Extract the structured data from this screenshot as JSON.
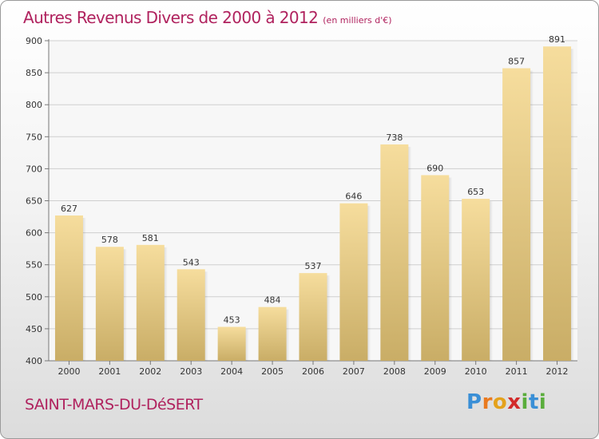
{
  "header": {
    "title": "Autres Revenus Divers de 2000 à 2012",
    "subtitle": "(en milliers d'€)"
  },
  "footer": {
    "commune": "SAINT-MARS-DU-DéSERT",
    "logo_letters": [
      {
        "char": "P",
        "color": "#3a8fd6"
      },
      {
        "char": "r",
        "color": "#e97a1f"
      },
      {
        "char": "o",
        "color": "#e4a21c"
      },
      {
        "char": "x",
        "color": "#d22b2b"
      },
      {
        "char": "i",
        "color": "#5aad3c"
      },
      {
        "char": "t",
        "color": "#3a8fd6"
      },
      {
        "char": "i",
        "color": "#5aad3c"
      }
    ]
  },
  "colors": {
    "accent": "#b0225e",
    "bar_top": "#f6dd9d",
    "bar_bottom": "#c9ad66"
  },
  "chart_data": {
    "type": "bar",
    "categories": [
      "2000",
      "2001",
      "2002",
      "2003",
      "2004",
      "2005",
      "2006",
      "2007",
      "2008",
      "2009",
      "2010",
      "2011",
      "2012"
    ],
    "values": [
      627,
      578,
      581,
      543,
      453,
      484,
      537,
      646,
      738,
      690,
      653,
      857,
      891
    ],
    "ylim": [
      400,
      900
    ],
    "yticks": [
      400,
      450,
      500,
      550,
      600,
      650,
      700,
      750,
      800,
      850,
      900
    ],
    "grid": true,
    "legend": "none"
  }
}
